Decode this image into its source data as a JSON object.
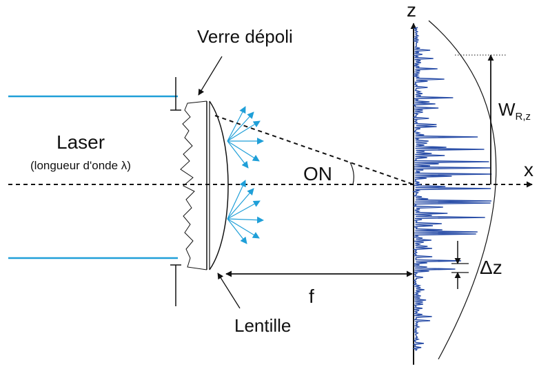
{
  "labels": {
    "ground_glass": "Verre dépoli",
    "laser": "Laser",
    "wavelength": "(longueur d'onde λ)",
    "numerical_aperture": "ON",
    "lens": "Lentille",
    "focal_length": "f",
    "z_axis": "z",
    "x_axis": "x",
    "width_main": "W",
    "width_sub": "R,z",
    "speckle_step": "Δz"
  },
  "colors": {
    "beam": "#1f9fd8",
    "rays": "#1f9fd8",
    "speckle": "#2b4fa8",
    "ink": "#111111"
  }
}
